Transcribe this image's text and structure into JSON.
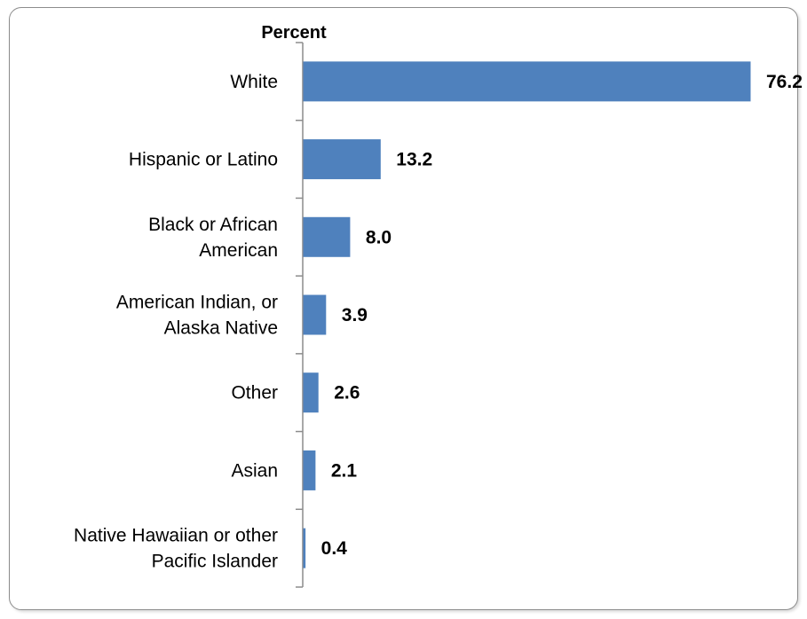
{
  "chart_data": {
    "type": "bar",
    "orientation": "horizontal",
    "title": "",
    "xlabel": "",
    "ylabel": "Percent",
    "categories": [
      "White",
      "Hispanic or Latino",
      "Black or African American",
      "American Indian, or Alaska Native",
      "Other",
      "Asian",
      "Native Hawaiian or other Pacific Islander"
    ],
    "category_lines": [
      [
        "White"
      ],
      [
        "Hispanic or Latino"
      ],
      [
        "Black or African",
        "American"
      ],
      [
        "American Indian, or",
        "Alaska Native"
      ],
      [
        "Other"
      ],
      [
        "Asian"
      ],
      [
        "Native Hawaiian or other",
        "Pacific Islander"
      ]
    ],
    "values": [
      76.2,
      13.2,
      8.0,
      3.9,
      2.6,
      2.1,
      0.4
    ],
    "value_labels": [
      "76.2",
      "13.2",
      "8.0",
      "3.9",
      "2.6",
      "2.1",
      "0.4"
    ],
    "xlim": [
      0,
      76.2
    ],
    "bar_color": "#4f81bd",
    "grid": false,
    "legend": "none"
  }
}
